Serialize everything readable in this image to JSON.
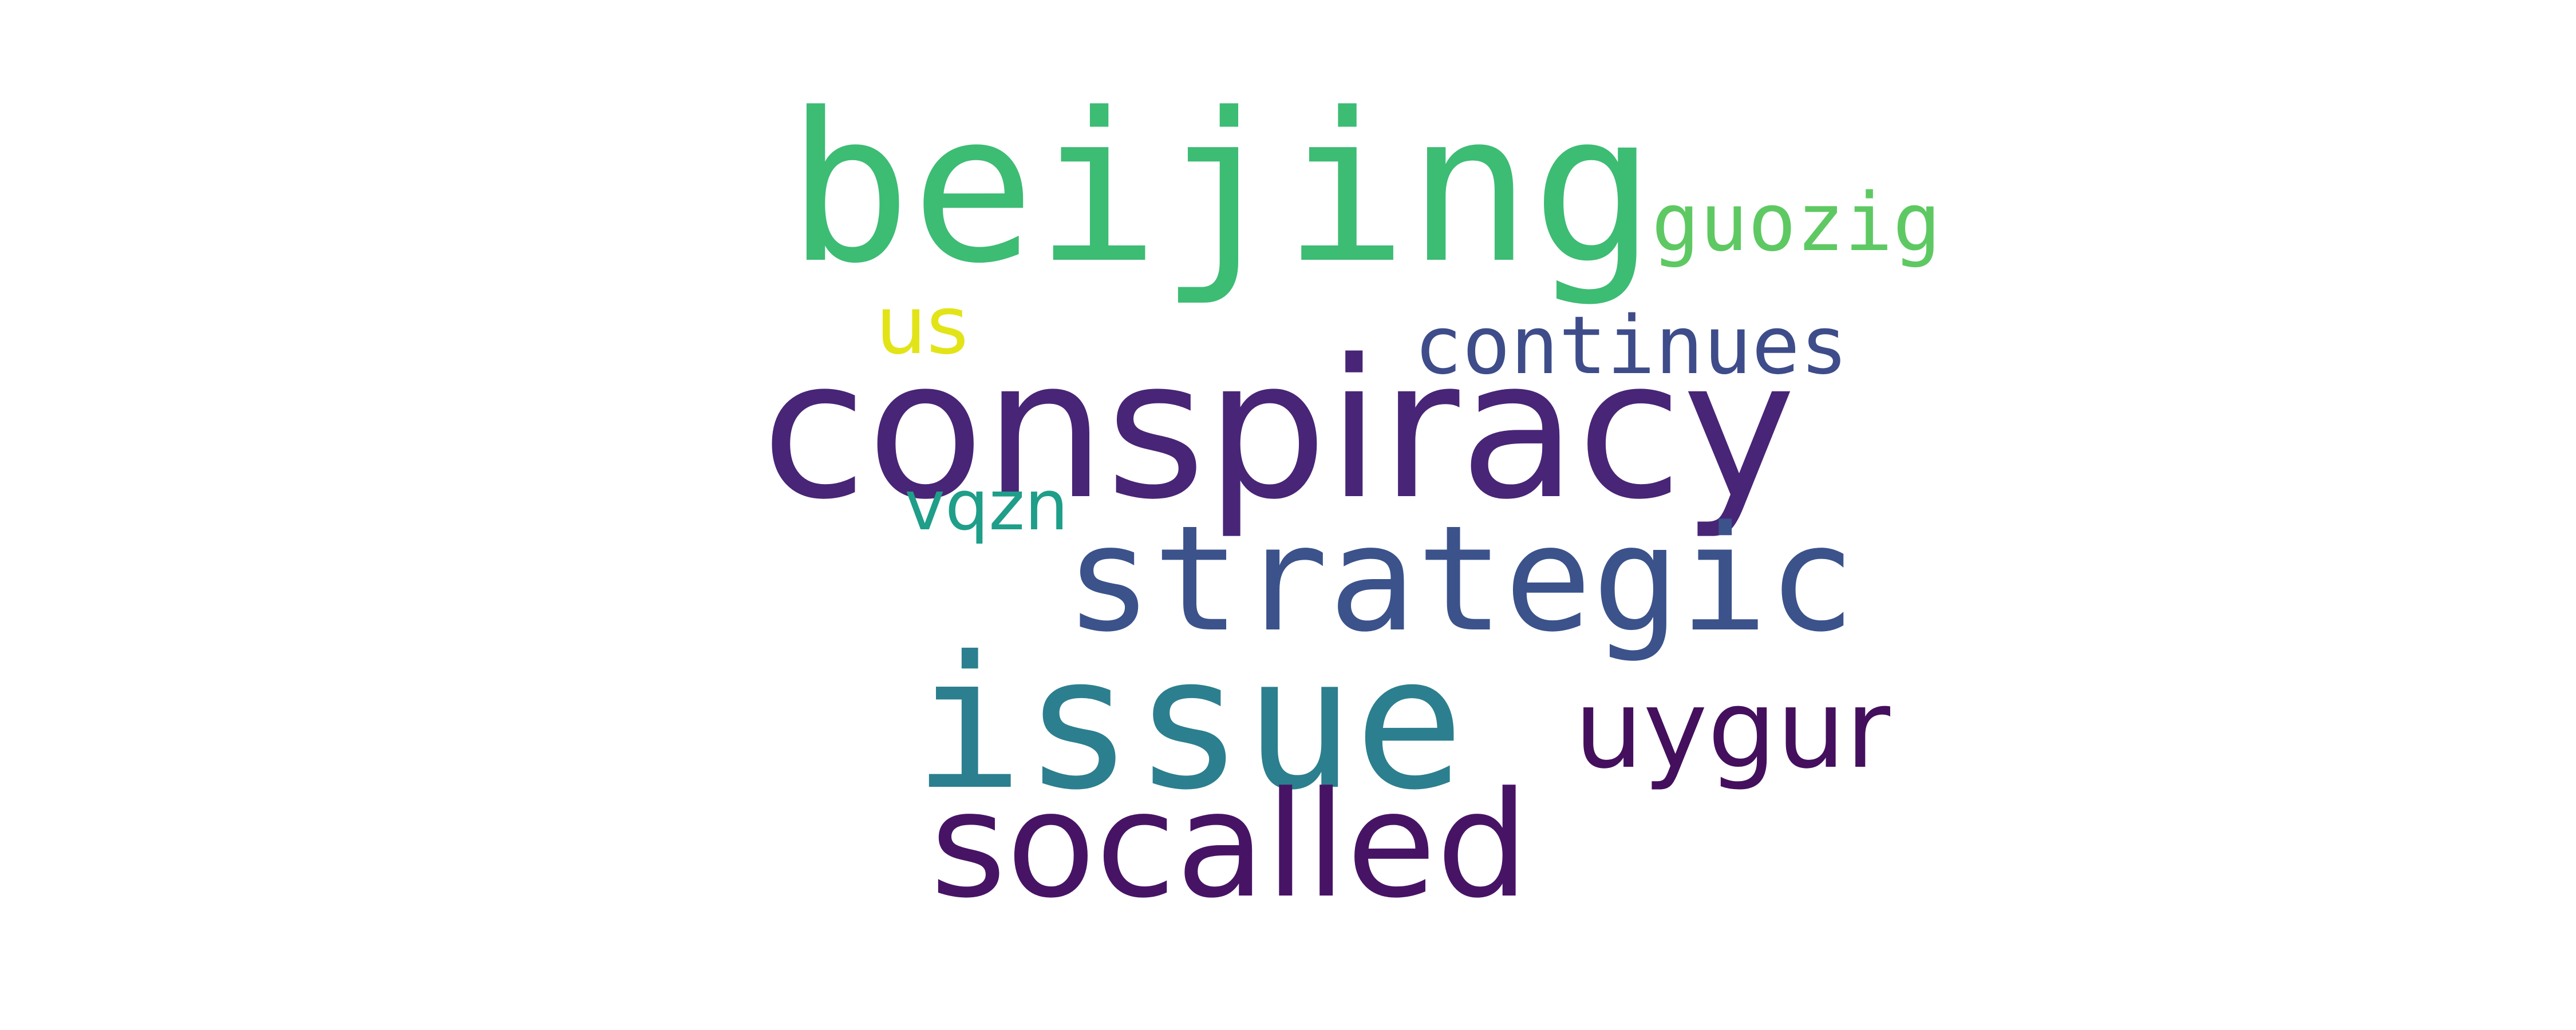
{
  "words": [
    {
      "text": "beijing",
      "color": "#3dbc74"
    },
    {
      "text": "guozig",
      "color": "#5ec962"
    },
    {
      "text": "us",
      "color": "#e2e418"
    },
    {
      "text": "continues",
      "color": "#3e4c8a"
    },
    {
      "text": "conspiracy",
      "color": "#482576"
    },
    {
      "text": "vqzn",
      "color": "#1f9e89"
    },
    {
      "text": "strategic",
      "color": "#3b528b"
    },
    {
      "text": "issue",
      "color": "#2c7f8e"
    },
    {
      "text": "uygur",
      "color": "#440f5d"
    },
    {
      "text": "socalled",
      "color": "#471465"
    }
  ]
}
